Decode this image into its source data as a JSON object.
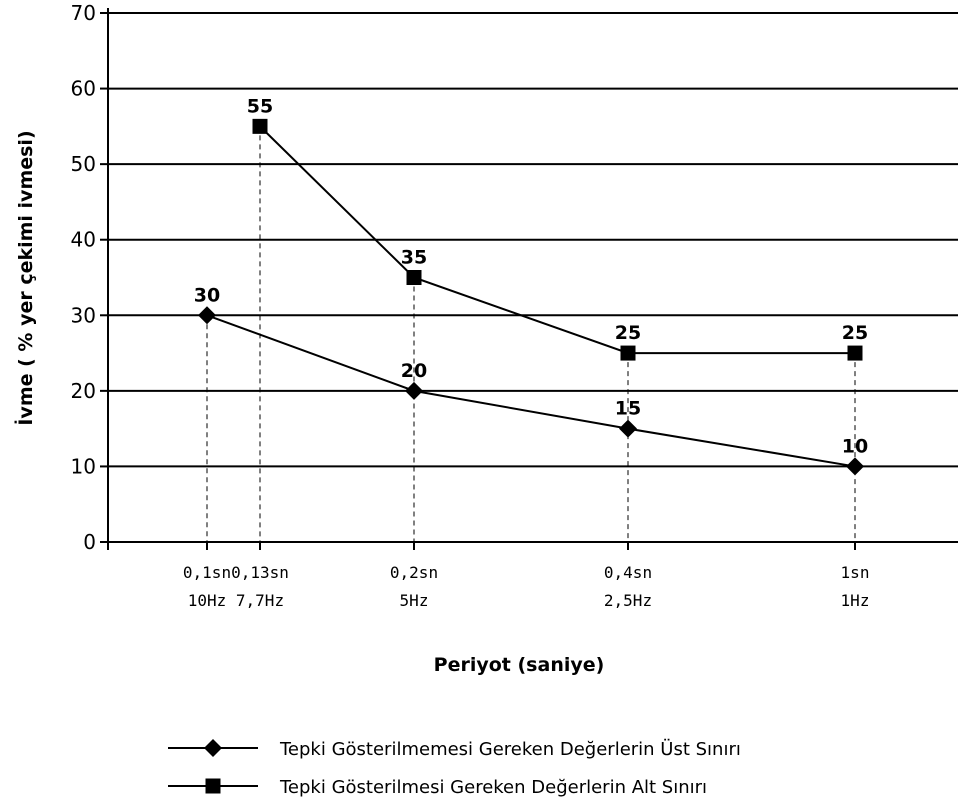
{
  "chart_data": {
    "type": "line",
    "xlabel": "Periyot (saniye)",
    "ylabel": "İvme ( % yer çekimi ivmesi)",
    "ylim": [
      0,
      70
    ],
    "yticks": [
      0,
      10,
      20,
      30,
      40,
      50,
      60,
      70
    ],
    "grid": "horizontal",
    "legend_position": "bottom",
    "x_categories": [
      {
        "period": "0,1sn",
        "freq": "10Hz"
      },
      {
        "period": "0,13sn",
        "freq": "7,7Hz"
      },
      {
        "period": "0,2sn",
        "freq": "5Hz"
      },
      {
        "period": "0,4sn",
        "freq": "2,5Hz"
      },
      {
        "period": "1sn",
        "freq": "1Hz"
      }
    ],
    "series": [
      {
        "name": "Tepki Gösterilmemesi Gereken Değerlerin Üst Sınırı",
        "marker": "diamond",
        "color": "#000000",
        "points": [
          {
            "x": "0,1sn",
            "y": 30
          },
          {
            "x": "0,2sn",
            "y": 20
          },
          {
            "x": "0,4sn",
            "y": 15
          },
          {
            "x": "1sn",
            "y": 10
          }
        ]
      },
      {
        "name": "Tepki Gösterilmesi Gereken Değerlerin Alt Sınırı",
        "marker": "square",
        "color": "#000000",
        "points": [
          {
            "x": "0,13sn",
            "y": 55
          },
          {
            "x": "0,2sn",
            "y": 35
          },
          {
            "x": "0,4sn",
            "y": 25
          },
          {
            "x": "1sn",
            "y": 25
          }
        ]
      }
    ]
  }
}
